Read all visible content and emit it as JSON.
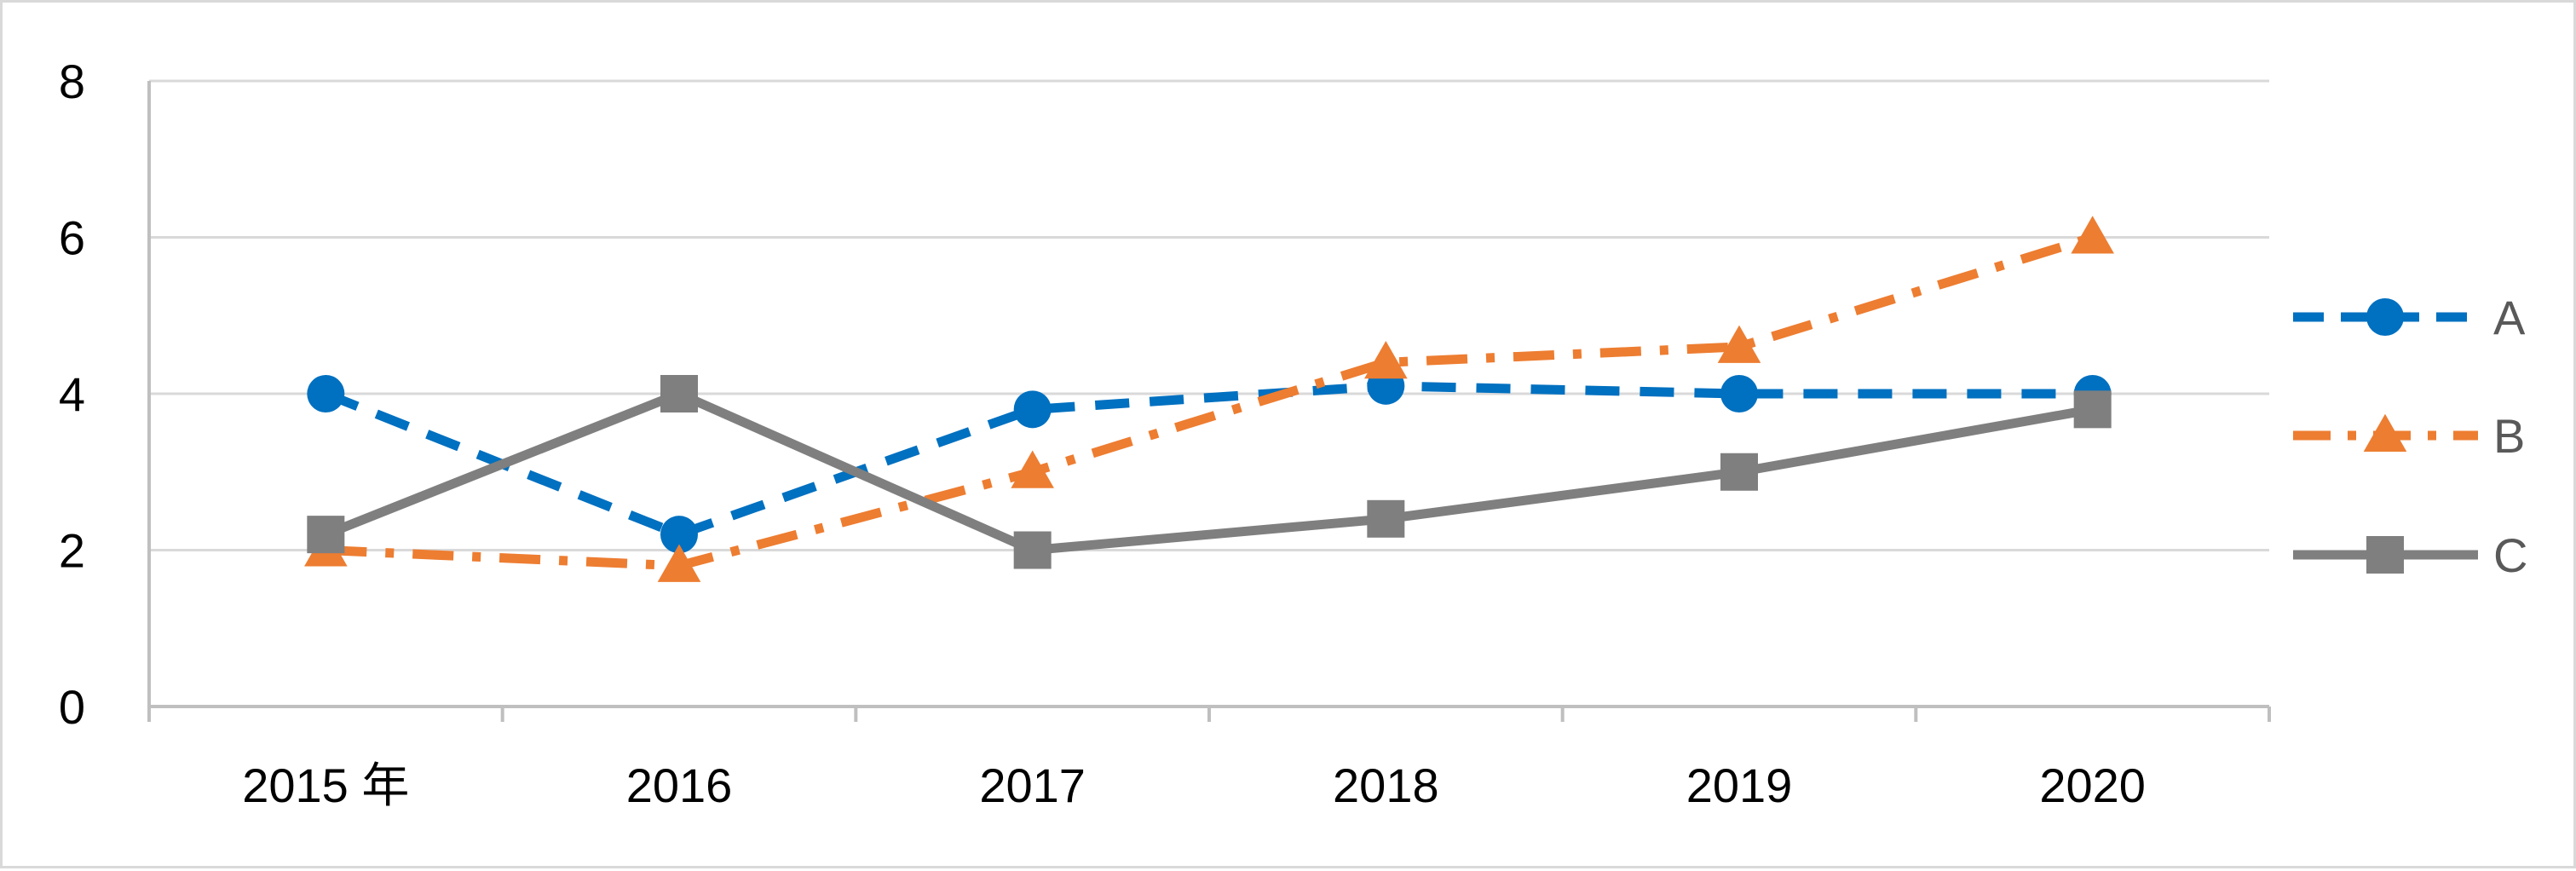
{
  "chart_data": {
    "type": "line",
    "title": "",
    "xlabel": "",
    "ylabel": "",
    "categories": [
      "2015 年",
      "2016",
      "2017",
      "2018",
      "2019",
      "2020"
    ],
    "ylim": [
      0,
      8
    ],
    "yticks": [
      "0",
      "2",
      "4",
      "6",
      "8"
    ],
    "grid": true,
    "legend_position": "right",
    "series": [
      {
        "name": "A",
        "values": [
          4.0,
          2.2,
          3.8,
          4.1,
          4.0,
          4.0
        ],
        "color": "#0070c0",
        "line_style": "dashed",
        "marker": "circle"
      },
      {
        "name": "B",
        "values": [
          2.0,
          1.8,
          3.0,
          4.4,
          4.6,
          6.0
        ],
        "color": "#ed7d31",
        "line_style": "dash-dot",
        "marker": "triangle"
      },
      {
        "name": "C",
        "values": [
          2.2,
          4.0,
          2.0,
          2.4,
          3.0,
          3.8
        ],
        "color": "#7f7f7f",
        "line_style": "solid",
        "marker": "square"
      }
    ]
  }
}
